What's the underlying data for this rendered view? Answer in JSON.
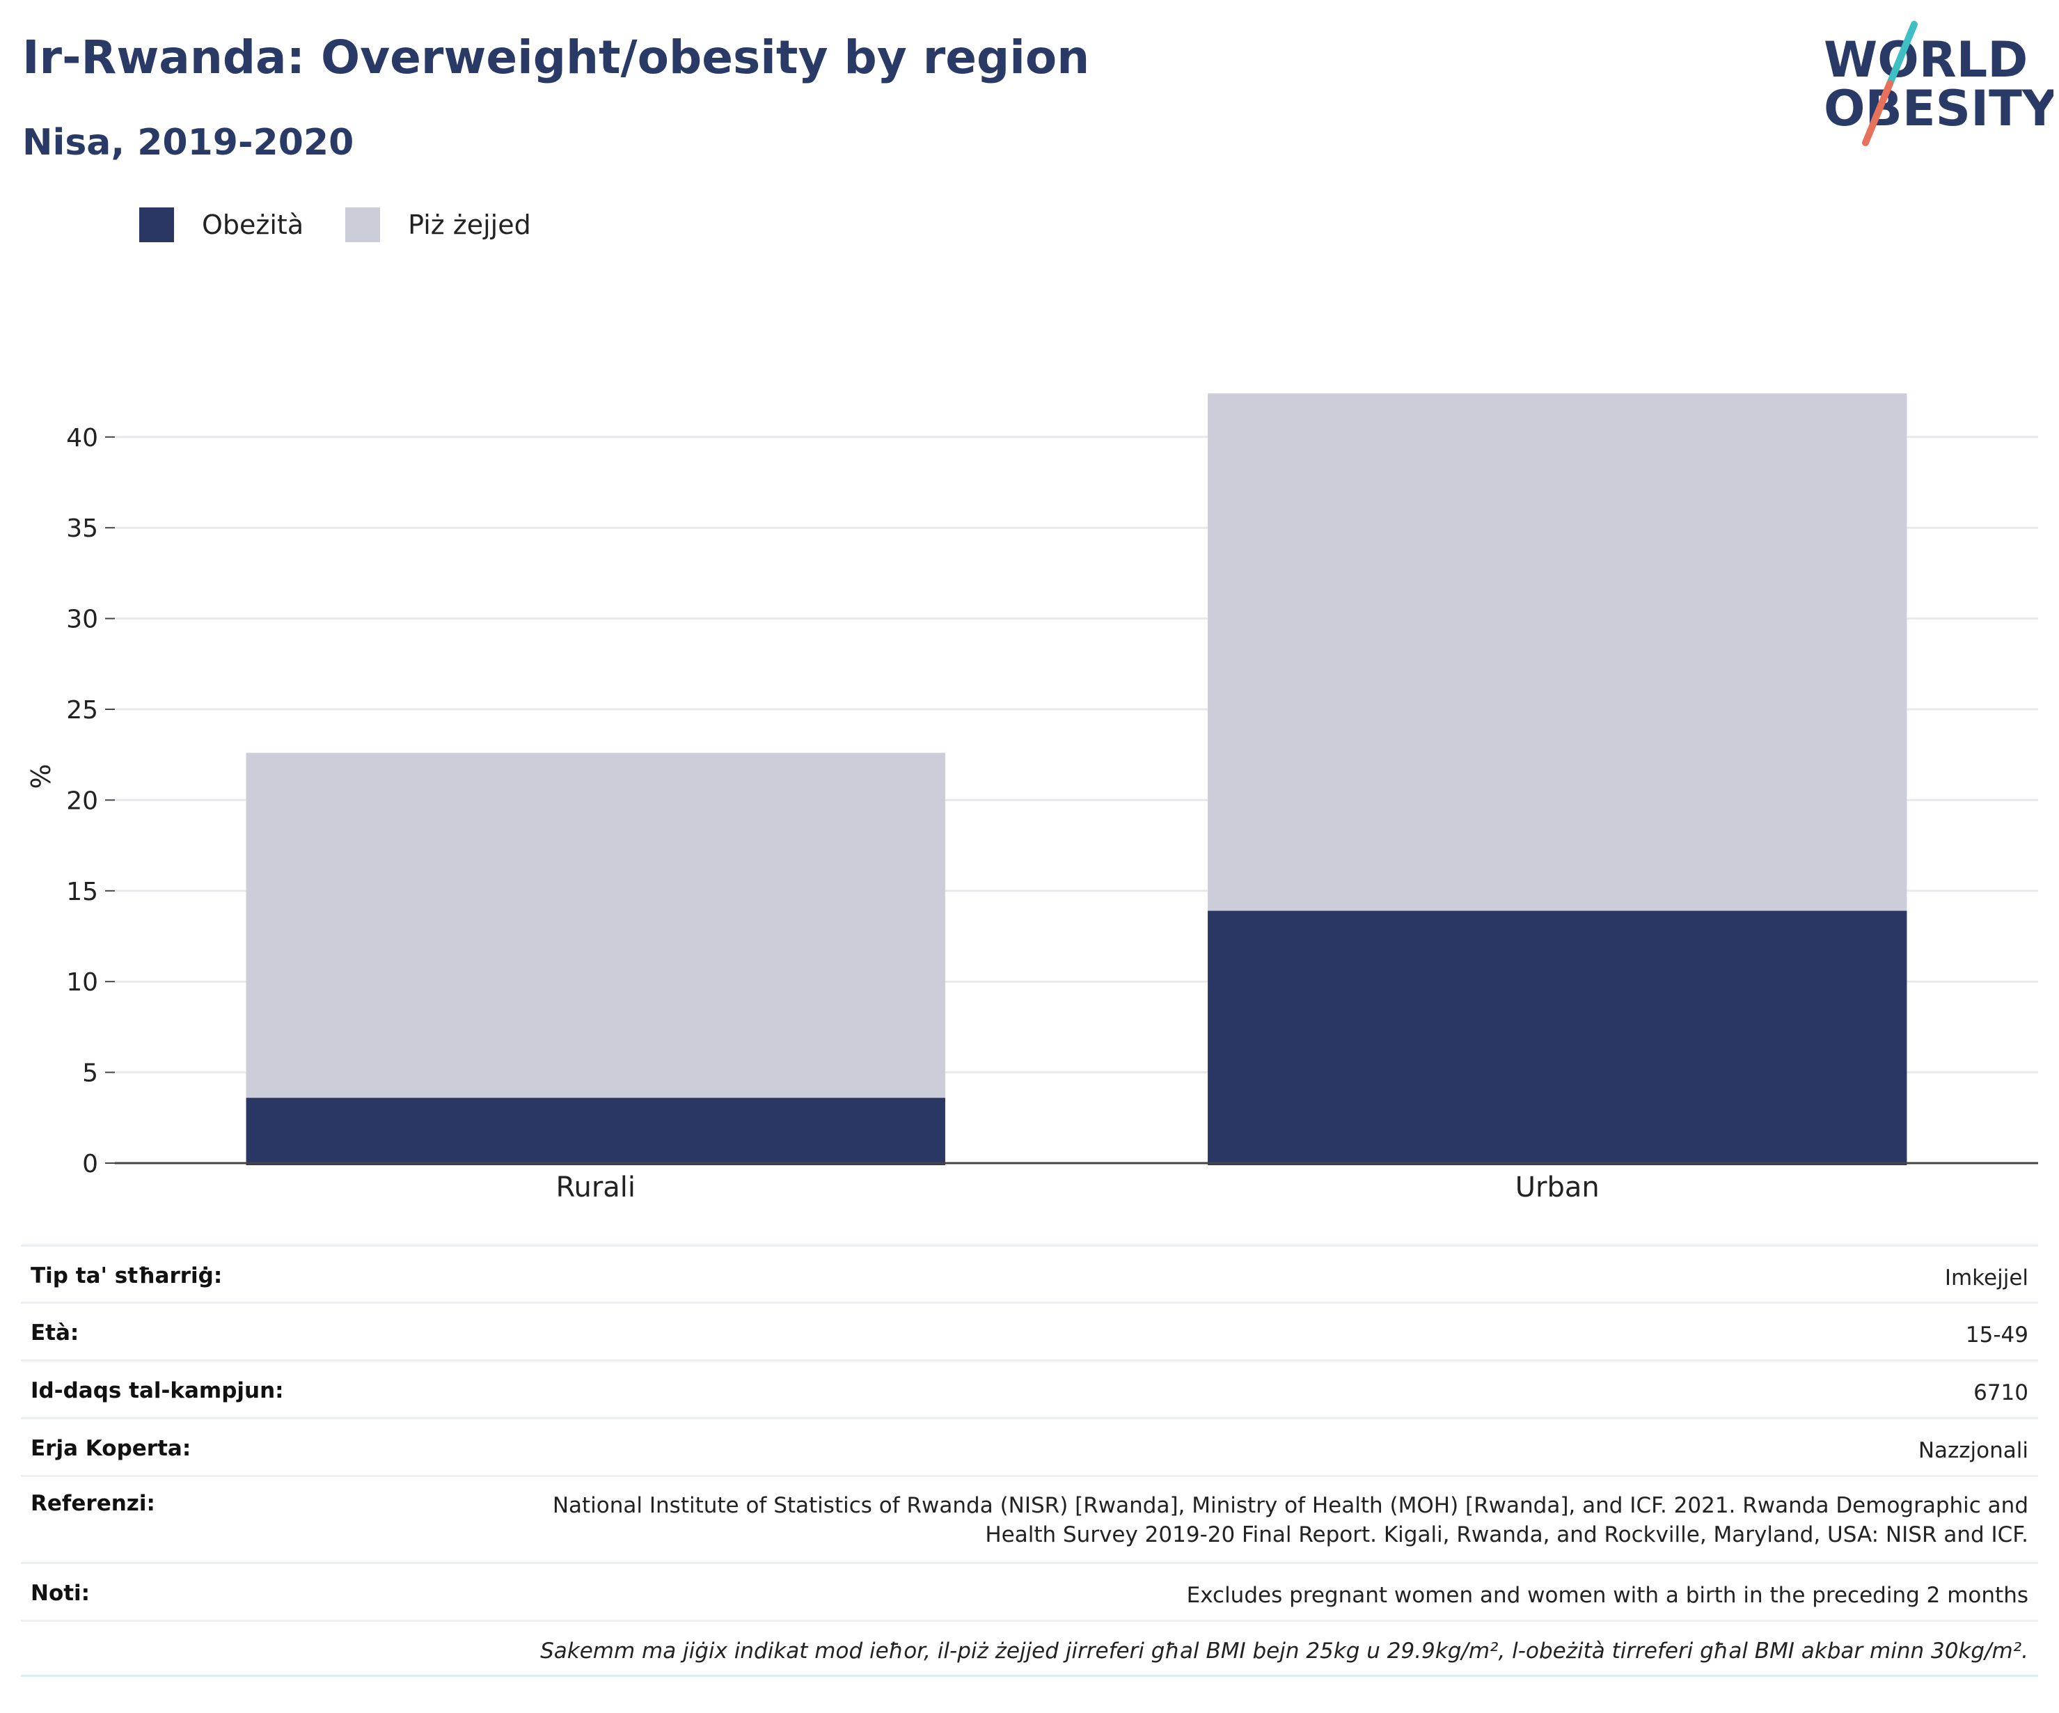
{
  "header": {
    "title": "Ir-Rwanda: Overweight/obesity by region",
    "subtitle": "Nisa, 2019-2020"
  },
  "logo": {
    "text_line1": "WORLD",
    "text_line2": "OBESITY",
    "colors": {
      "text": "#2a3a66",
      "slash_top": "#3dbfc4",
      "slash_bottom": "#e8715c"
    }
  },
  "legend": [
    {
      "label": "Obeżità",
      "color": "#2a3664"
    },
    {
      "label": "Piż żejjed",
      "color": "#cbcdd9"
    }
  ],
  "chart_data": {
    "type": "bar",
    "stacked": true,
    "categories": [
      "Rurali",
      "Urban"
    ],
    "series": [
      {
        "name": "Obeżità",
        "values": [
          3.6,
          13.9
        ],
        "color": "#2a3664"
      },
      {
        "name": "Piż żejjed",
        "values": [
          19.0,
          28.5
        ],
        "color": "#cbcdd9"
      }
    ],
    "title": "",
    "xlabel": "",
    "ylabel": "%",
    "ylim": [
      0,
      42.6
    ],
    "yticks": [
      0,
      5,
      10,
      15,
      20,
      25,
      30,
      35,
      40
    ],
    "grid": true,
    "legend_position": "top-left"
  },
  "info_table": [
    {
      "key": "Tip ta' stħarriġ:",
      "value": "Imkejjel"
    },
    {
      "key": "Età:",
      "value": "15-49"
    },
    {
      "key": "Id-daqs tal-kampjun:",
      "value": "6710"
    },
    {
      "key": "Erja Koperta:",
      "value": "Nazzjonali"
    },
    {
      "key": "Referenzi:",
      "value": "National Institute of Statistics of Rwanda (NISR) [Rwanda], Ministry of Health (MOH) [Rwanda], and ICF. 2021. Rwanda Demographic and Health Survey 2019-20 Final Report. Kigali, Rwanda, and Rockville, Maryland, USA: NISR and ICF."
    },
    {
      "key": "Noti:",
      "value": "Excludes pregnant women and women with a birth in the preceding 2 months"
    }
  ],
  "footnote": "Sakemm ma jiġix indikat mod ieħor, il-piż żejjed jirreferi għal BMI bejn 25kg u 29.9kg/m², l-obeżità tirreferi għal BMI akbar minn 30kg/m²."
}
